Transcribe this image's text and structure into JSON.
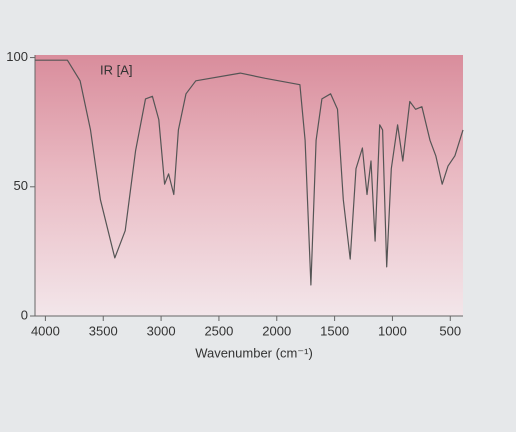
{
  "chart_data": {
    "type": "line",
    "annotation": "IR [A]",
    "x_label": "Wavenumber (cm⁻¹)",
    "xlim": [
      4090,
      390
    ],
    "xticks": [
      4000,
      3500,
      3000,
      2500,
      2000,
      1500,
      1000,
      500
    ],
    "ylim": [
      0,
      101
    ],
    "yticks": [
      0,
      50,
      100
    ],
    "grid": false,
    "x": [
      4090,
      3810,
      3700,
      3610,
      3525,
      3400,
      3310,
      3220,
      3135,
      3075,
      3020,
      2970,
      2935,
      2890,
      2850,
      2785,
      2700,
      2315,
      2100,
      1800,
      1755,
      1705,
      1660,
      1610,
      1535,
      1475,
      1425,
      1365,
      1315,
      1260,
      1220,
      1185,
      1150,
      1110,
      1085,
      1050,
      1010,
      955,
      910,
      850,
      800,
      745,
      675,
      625,
      570,
      520,
      460,
      390
    ],
    "series": [
      {
        "color": "#555555",
        "values": [
          99,
          99,
          91,
          72,
          45,
          22.5,
          33,
          64,
          84,
          85,
          76,
          51,
          55,
          47,
          72,
          86,
          91,
          94,
          92,
          89.5,
          68,
          12,
          68,
          84,
          86,
          80,
          45,
          22,
          57,
          65,
          47,
          60,
          29,
          74,
          72,
          19,
          57,
          74,
          60,
          83,
          80,
          81,
          68,
          62,
          51,
          58,
          62,
          72
        ]
      }
    ]
  }
}
